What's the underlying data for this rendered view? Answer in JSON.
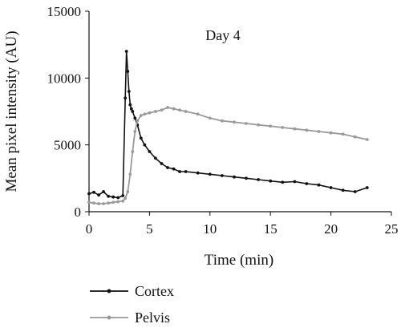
{
  "chart_data": {
    "type": "line",
    "title": "",
    "annotation": "Day 4",
    "xlabel": "Time (min)",
    "ylabel": "Mean pixel intensity (AU)",
    "xlim": [
      0,
      25
    ],
    "ylim": [
      0,
      15000
    ],
    "x_ticks": [
      "0",
      "5",
      "10",
      "15",
      "20",
      "25"
    ],
    "y_ticks": [
      "0",
      "5000",
      "10000",
      "15000"
    ],
    "grid": false,
    "legend_position": "bottom-left",
    "series": [
      {
        "name": "Cortex",
        "color": "#111111",
        "marker": "dot",
        "x": [
          0,
          0.4,
          0.8,
          1.2,
          1.6,
          2.0,
          2.4,
          2.8,
          3.0,
          3.1,
          3.2,
          3.3,
          3.4,
          3.5,
          3.6,
          3.8,
          4.0,
          4.3,
          4.6,
          5.0,
          5.5,
          6.0,
          6.5,
          7.0,
          7.5,
          8.0,
          9.0,
          10.0,
          11.0,
          12.0,
          13.0,
          14.0,
          15.0,
          16.0,
          17.0,
          18.0,
          19.0,
          20.0,
          21.0,
          22.0,
          23.0
        ],
        "y": [
          1350,
          1450,
          1250,
          1500,
          1150,
          1100,
          1050,
          1200,
          8500,
          12000,
          10500,
          9000,
          8000,
          7700,
          7500,
          7000,
          6500,
          5500,
          5000,
          4500,
          4000,
          3600,
          3300,
          3200,
          3000,
          3000,
          2900,
          2800,
          2700,
          2600,
          2500,
          2400,
          2300,
          2200,
          2250,
          2100,
          2000,
          1800,
          1600,
          1500,
          1800
        ]
      },
      {
        "name": "Pelvis",
        "color": "#9a9a9a",
        "marker": "dot",
        "x": [
          0,
          0.4,
          0.8,
          1.2,
          1.6,
          2.0,
          2.4,
          2.8,
          3.0,
          3.2,
          3.4,
          3.6,
          3.8,
          4.0,
          4.3,
          4.6,
          5.0,
          5.5,
          6.0,
          6.5,
          7.0,
          7.5,
          8.0,
          9.0,
          10.0,
          11.0,
          12.0,
          13.0,
          14.0,
          15.0,
          16.0,
          17.0,
          18.0,
          19.0,
          20.0,
          21.0,
          22.0,
          23.0
        ],
        "y": [
          700,
          650,
          600,
          600,
          650,
          700,
          750,
          800,
          1000,
          1500,
          2800,
          4500,
          6000,
          6800,
          7200,
          7300,
          7400,
          7500,
          7600,
          7800,
          7700,
          7600,
          7500,
          7300,
          7000,
          6800,
          6700,
          6600,
          6500,
          6400,
          6300,
          6200,
          6100,
          6000,
          5900,
          5800,
          5600,
          5400
        ]
      }
    ]
  }
}
